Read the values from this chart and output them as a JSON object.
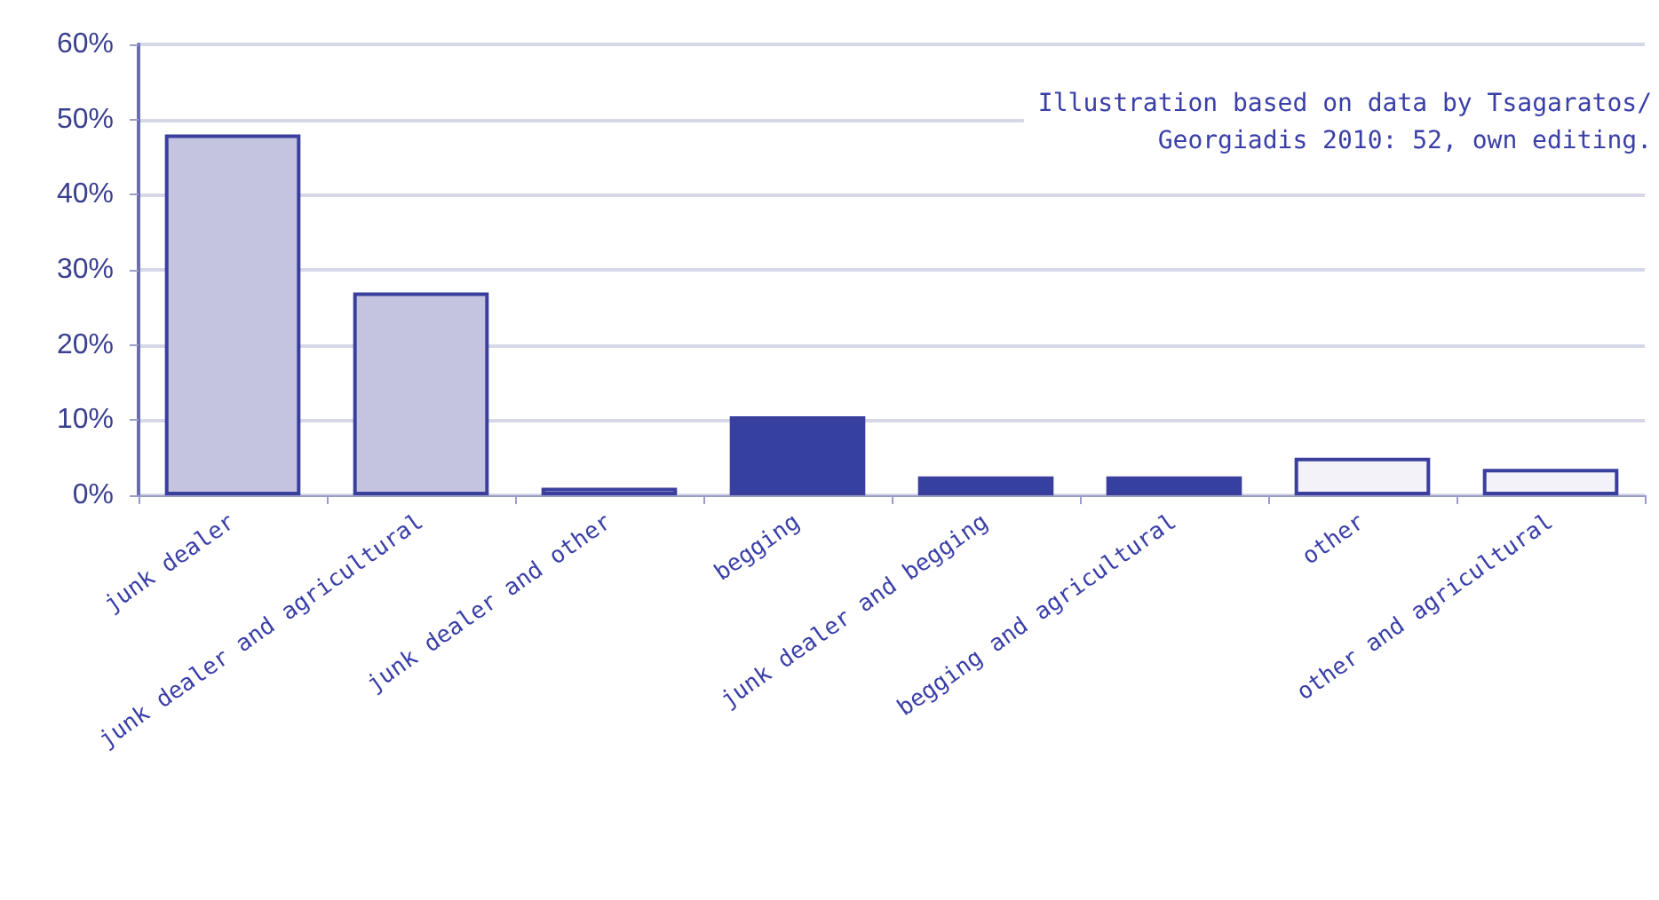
{
  "chart_data": {
    "type": "bar",
    "categories": [
      "junk dealer",
      "junk dealer and agricultural",
      "junk dealer and other",
      "begging",
      "junk dealer and begging",
      "begging and agricultural",
      "other",
      "other and agricultural"
    ],
    "values": [
      48,
      27,
      1,
      10.5,
      2.5,
      2.5,
      5,
      3.5
    ],
    "colors": [
      "#c4c4e0",
      "#c4c4e0",
      "#c4c4e0",
      "#3640a0",
      "#3640a0",
      "#3640a0",
      "#f2f2f8",
      "#f2f2f8"
    ],
    "ylim": [
      0,
      60
    ],
    "yticks": [
      {
        "value": 0,
        "label": "0%"
      },
      {
        "value": 10,
        "label": "10%"
      },
      {
        "value": 20,
        "label": "20%"
      },
      {
        "value": 30,
        "label": "30%"
      },
      {
        "value": 40,
        "label": "40%"
      },
      {
        "value": 50,
        "label": "50%"
      },
      {
        "value": 60,
        "label": "60%"
      }
    ],
    "grid": "y",
    "annotations": [
      "Illustration based on data by Tsagaratos/\nGeorgiadis 2010: 52, own editing."
    ]
  }
}
